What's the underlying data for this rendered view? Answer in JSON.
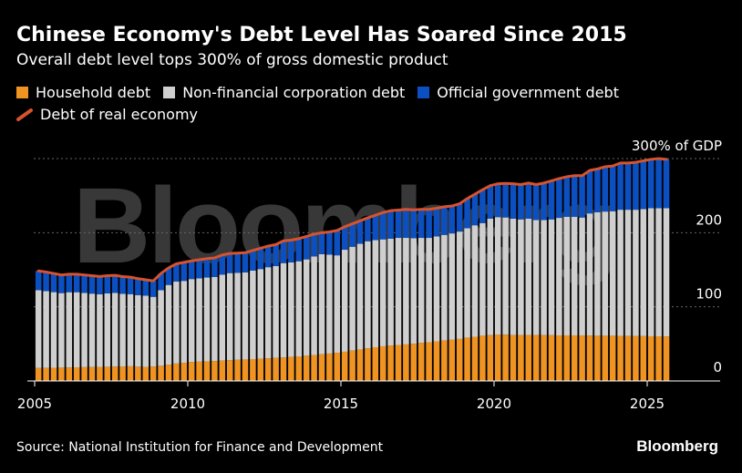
{
  "header": {
    "title": "Chinese Economy's Debt Level Has Soared Since 2015",
    "subtitle": "Overall debt level tops 300% of gross domestic product"
  },
  "legend": {
    "household": "Household debt",
    "corporate": "Non-financial corporation debt",
    "government": "Official government debt",
    "real_economy": "Debt of real economy"
  },
  "colors": {
    "household": "#ef9422",
    "corporate": "#cfcfcf",
    "government": "#0b4fc0",
    "real_economy": "#d7532f",
    "grid": "#666666"
  },
  "footer": {
    "source": "Source: National Institution for Finance and Development",
    "logo": "Bloomberg"
  },
  "watermark": "Bloomberg",
  "chart_data": {
    "type": "bar",
    "stacked": true,
    "title": "Chinese Economy's Debt Level Has Soared Since 2015",
    "ylim": [
      0,
      300
    ],
    "xlim": [
      2005,
      2026.5
    ],
    "yticks": [
      {
        "value": 0,
        "label": "0"
      },
      {
        "value": 100,
        "label": "100"
      },
      {
        "value": 200,
        "label": "200"
      },
      {
        "value": 300,
        "label": "300% of GDP"
      }
    ],
    "xticks": [
      {
        "value": 2005,
        "label": "2005"
      },
      {
        "value": 2010,
        "label": "2010"
      },
      {
        "value": 2015,
        "label": "2015"
      },
      {
        "value": 2020,
        "label": "2020"
      },
      {
        "value": 2025,
        "label": "2025"
      }
    ],
    "x_start": 2005,
    "x_step": 0.25,
    "series": [
      {
        "name": "Household debt",
        "values": [
          17.5,
          17.6,
          17.8,
          18.0,
          18.2,
          18.4,
          18.6,
          18.8,
          19.0,
          19.2,
          19.4,
          19.6,
          19.8,
          19.3,
          19.0,
          19.5,
          20.5,
          22.0,
          23.5,
          24.5,
          25.5,
          26.0,
          26.5,
          26.8,
          27.5,
          28.0,
          28.5,
          29.0,
          29.5,
          30.0,
          30.5,
          31.0,
          31.7,
          32.4,
          33.2,
          34.0,
          35.0,
          36.0,
          37.0,
          38.0,
          39.4,
          41.0,
          42.5,
          44.0,
          45.5,
          46.8,
          47.8,
          48.5,
          49.3,
          50.2,
          51.3,
          52.3,
          53.5,
          54.6,
          55.5,
          56.7,
          58.5,
          59.6,
          61.0,
          61.8,
          62.3,
          62.5,
          61.8,
          62.0,
          62.0,
          62.0,
          61.8,
          61.7,
          61.5,
          61.5,
          61.5,
          61.5,
          61.3,
          61.0,
          61.0,
          61.0,
          60.8,
          60.7,
          60.5,
          60.5,
          60.3,
          60.2,
          60.0
        ]
      },
      {
        "name": "Non-financial corporation debt",
        "values": [
          105.0,
          103.5,
          102.0,
          100.5,
          101.5,
          101.3,
          100.2,
          99.0,
          98.0,
          99.0,
          99.5,
          98.0,
          97.3,
          96.5,
          96.0,
          94.0,
          102.0,
          107.5,
          110.5,
          110.5,
          112.0,
          112.5,
          113.0,
          113.5,
          116.0,
          117.5,
          117.5,
          117.5,
          119.5,
          121.0,
          123.0,
          124.0,
          127.3,
          127.6,
          128.3,
          130.0,
          133.0,
          135.0,
          133.5,
          131.5,
          137.6,
          140.0,
          142.5,
          144.5,
          144.5,
          144.2,
          144.2,
          144.5,
          143.7,
          142.3,
          141.7,
          140.7,
          141.5,
          142.4,
          143.5,
          144.8,
          147.5,
          150.4,
          152.0,
          157.2,
          158.7,
          158.0,
          157.2,
          156.0,
          157.0,
          155.0,
          155.2,
          156.3,
          158.5,
          160.0,
          160.0,
          159.0,
          164.7,
          166.5,
          167.5,
          168.0,
          170.2,
          170.3,
          170.5,
          171.5,
          172.7,
          172.8,
          173.0
        ]
      },
      {
        "name": "Official government debt",
        "values": [
          26.0,
          25.9,
          25.2,
          24.5,
          24.3,
          24.3,
          24.2,
          24.2,
          24.0,
          23.8,
          23.6,
          23.2,
          22.9,
          22.2,
          21.5,
          21.5,
          22.5,
          23.0,
          24.0,
          25.0,
          24.5,
          25.0,
          25.5,
          25.7,
          26.5,
          26.5,
          26.5,
          26.5,
          27.0,
          28.0,
          28.5,
          29.0,
          30.0,
          30.0,
          30.5,
          31.0,
          30.0,
          29.0,
          30.5,
          33.5,
          31.0,
          31.0,
          31.0,
          31.5,
          33.5,
          36.2,
          37.7,
          37.5,
          38.5,
          38.3,
          38.5,
          38.5,
          38.0,
          38.0,
          37.0,
          37.5,
          40.0,
          42.0,
          45.0,
          44.5,
          45.0,
          46.0,
          47.0,
          47.0,
          48.0,
          48.0,
          50.0,
          52.0,
          53.0,
          54.0,
          55.5,
          56.5,
          58.0,
          58.5,
          60.5,
          61.0,
          63.0,
          63.0,
          64.0,
          65.0,
          66.0,
          67.0,
          66.0
        ]
      }
    ],
    "line": {
      "name": "Debt of real economy",
      "values": [
        148.5,
        147.0,
        145.0,
        143.0,
        144.0,
        144.0,
        143.0,
        142.0,
        141.0,
        142.0,
        142.5,
        140.8,
        140.0,
        138.0,
        136.5,
        135.0,
        145.0,
        152.5,
        158.0,
        160.0,
        162.0,
        163.5,
        165.0,
        166.0,
        170.0,
        172.0,
        172.5,
        173.0,
        176.0,
        179.0,
        182.0,
        184.0,
        189.0,
        190.0,
        192.0,
        195.0,
        198.0,
        200.0,
        201.0,
        203.0,
        208.0,
        212.0,
        216.0,
        220.0,
        223.5,
        227.2,
        229.7,
        230.5,
        231.5,
        230.8,
        231.5,
        231.5,
        233.0,
        235.0,
        236.0,
        239.0,
        246.0,
        252.0,
        258.0,
        263.5,
        266.0,
        266.5,
        266.0,
        265.0,
        267.0,
        265.0,
        267.0,
        270.0,
        273.0,
        275.5,
        277.0,
        277.0,
        284.0,
        286.0,
        289.0,
        290.0,
        294.0,
        294.0,
        295.0,
        297.0,
        299.0,
        300.0,
        299.0
      ]
    }
  }
}
